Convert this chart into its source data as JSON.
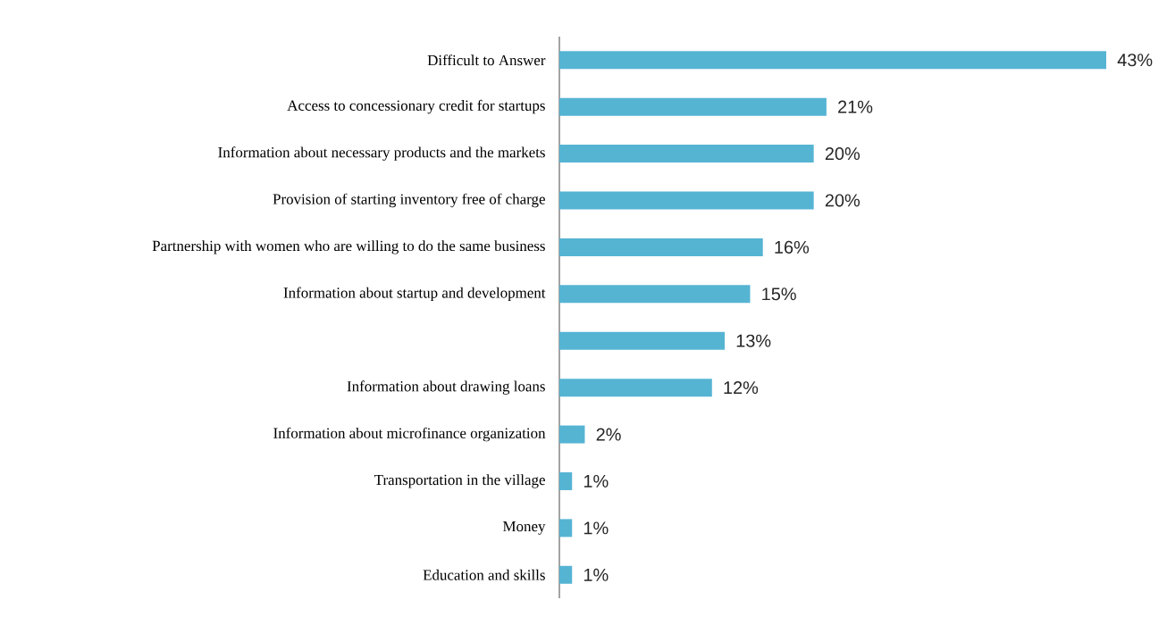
{
  "chart_data": {
    "type": "bar",
    "orientation": "horizontal",
    "categories": [
      "Difficult to Answer",
      "Access to concessionary credit for startups",
      "Information about necessary products and the markets",
      "Provision of starting inventory free of charge",
      "Partnership with women who are willing to do the same business",
      "Information about startup and development",
      null,
      "Information about drawing loans",
      "Information about microfinance organization",
      "Transportation in the village",
      "Money",
      "Education and skills"
    ],
    "values": [
      43,
      21,
      20,
      20,
      16,
      15,
      13,
      12,
      2,
      1,
      1,
      1
    ],
    "value_labels": [
      "43%",
      "21%",
      "20%",
      "20%",
      "16%",
      "15%",
      "13%",
      "12%",
      "2%",
      "1%",
      "1%",
      "1%"
    ],
    "color": "#56b4d3",
    "tick_labels": "y"
  }
}
